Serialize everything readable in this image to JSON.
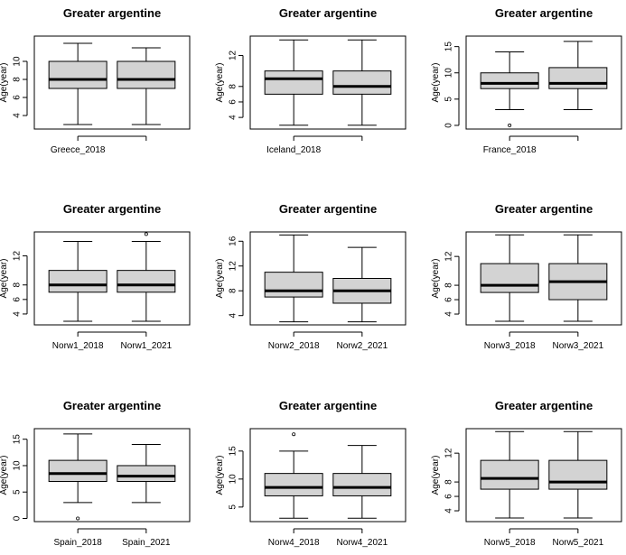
{
  "chart_data": [
    {
      "type": "boxplot",
      "title": "Greater argentine",
      "ylabel": "Age(year)",
      "ylim": [
        2.5,
        12.8
      ],
      "yticks": [
        4,
        6,
        8,
        10
      ],
      "categories": [
        "Greece_2018",
        ""
      ],
      "boxes": [
        {
          "min": 3,
          "q1": 7,
          "median": 8,
          "q3": 10,
          "max": 12,
          "outliers": []
        },
        {
          "min": 3,
          "q1": 7,
          "median": 8,
          "q3": 10,
          "max": 11.5,
          "outliers": []
        }
      ]
    },
    {
      "type": "boxplot",
      "title": "Greater argentine",
      "ylabel": "Age(year)",
      "ylim": [
        2.5,
        14.5
      ],
      "yticks": [
        4,
        6,
        8,
        12
      ],
      "categories": [
        "Iceland_2018",
        ""
      ],
      "boxes": [
        {
          "min": 3,
          "q1": 7,
          "median": 9,
          "q3": 10,
          "max": 14,
          "outliers": []
        },
        {
          "min": 3,
          "q1": 7,
          "median": 8,
          "q3": 10,
          "max": 14,
          "outliers": []
        }
      ]
    },
    {
      "type": "boxplot",
      "title": "Greater argentine",
      "ylabel": "Age(year)",
      "ylim": [
        -0.7,
        17
      ],
      "yticks": [
        0,
        5,
        10,
        15
      ],
      "categories": [
        "France_2018",
        ""
      ],
      "boxes": [
        {
          "min": 3,
          "q1": 7,
          "median": 8,
          "q3": 10,
          "max": 14,
          "outliers": [
            0
          ]
        },
        {
          "min": 3,
          "q1": 7,
          "median": 8,
          "q3": 11,
          "max": 16,
          "outliers": []
        }
      ]
    },
    {
      "type": "boxplot",
      "title": "Greater argentine",
      "ylabel": "Age(year)",
      "ylim": [
        2.5,
        15.3
      ],
      "yticks": [
        4,
        6,
        8,
        12
      ],
      "categories": [
        "Norw1_2018",
        "Norw1_2021"
      ],
      "boxes": [
        {
          "min": 3,
          "q1": 7,
          "median": 8,
          "q3": 10,
          "max": 14,
          "outliers": []
        },
        {
          "min": 3,
          "q1": 7,
          "median": 8,
          "q3": 10,
          "max": 14,
          "outliers": [
            15
          ]
        }
      ]
    },
    {
      "type": "boxplot",
      "title": "Greater argentine",
      "ylabel": "Age(year)",
      "ylim": [
        2.5,
        17.5
      ],
      "yticks": [
        4,
        8,
        12,
        16
      ],
      "categories": [
        "Norw2_2018",
        "Norw2_2021"
      ],
      "boxes": [
        {
          "min": 3,
          "q1": 7,
          "median": 8,
          "q3": 11,
          "max": 17,
          "outliers": []
        },
        {
          "min": 3,
          "q1": 6,
          "median": 8,
          "q3": 10,
          "max": 15,
          "outliers": []
        }
      ]
    },
    {
      "type": "boxplot",
      "title": "Greater argentine",
      "ylabel": "Age(year)",
      "ylim": [
        2.5,
        15.4
      ],
      "yticks": [
        4,
        6,
        8,
        12
      ],
      "categories": [
        "Norw3_2018",
        "Norw3_2021"
      ],
      "boxes": [
        {
          "min": 3,
          "q1": 7,
          "median": 8,
          "q3": 11,
          "max": 15,
          "outliers": []
        },
        {
          "min": 3,
          "q1": 6,
          "median": 8.5,
          "q3": 11,
          "max": 15,
          "outliers": []
        }
      ]
    },
    {
      "type": "boxplot",
      "title": "Greater argentine",
      "ylabel": "Age(year)",
      "ylim": [
        -0.6,
        17
      ],
      "yticks": [
        0,
        5,
        10,
        15
      ],
      "categories": [
        "Spain_2018",
        "Spain_2021"
      ],
      "boxes": [
        {
          "min": 3,
          "q1": 7,
          "median": 8.5,
          "q3": 11,
          "max": 16,
          "outliers": [
            0
          ]
        },
        {
          "min": 3,
          "q1": 7,
          "median": 8,
          "q3": 10,
          "max": 14,
          "outliers": []
        }
      ]
    },
    {
      "type": "boxplot",
      "title": "Greater argentine",
      "ylabel": "Age(year)",
      "ylim": [
        2.4,
        19
      ],
      "yticks": [
        5,
        10,
        15
      ],
      "categories": [
        "Norw4_2018",
        "Norw4_2021"
      ],
      "boxes": [
        {
          "min": 3,
          "q1": 7,
          "median": 8.5,
          "q3": 11,
          "max": 15,
          "outliers": [
            18
          ]
        },
        {
          "min": 3,
          "q1": 7,
          "median": 8.5,
          "q3": 11,
          "max": 16,
          "outliers": []
        }
      ]
    },
    {
      "type": "boxplot",
      "title": "Greater argentine",
      "ylabel": "Age(year)",
      "ylim": [
        2.5,
        15.4
      ],
      "yticks": [
        4,
        6,
        8,
        12
      ],
      "categories": [
        "Norw5_2018",
        "Norw5_2021"
      ],
      "boxes": [
        {
          "min": 3,
          "q1": 7,
          "median": 8.5,
          "q3": 11,
          "max": 15,
          "outliers": []
        },
        {
          "min": 3,
          "q1": 7,
          "median": 8,
          "q3": 11,
          "max": 15,
          "outliers": []
        }
      ]
    }
  ],
  "colors": {
    "box_fill": "#d3d3d3",
    "stroke": "#000000",
    "background": "#ffffff"
  }
}
